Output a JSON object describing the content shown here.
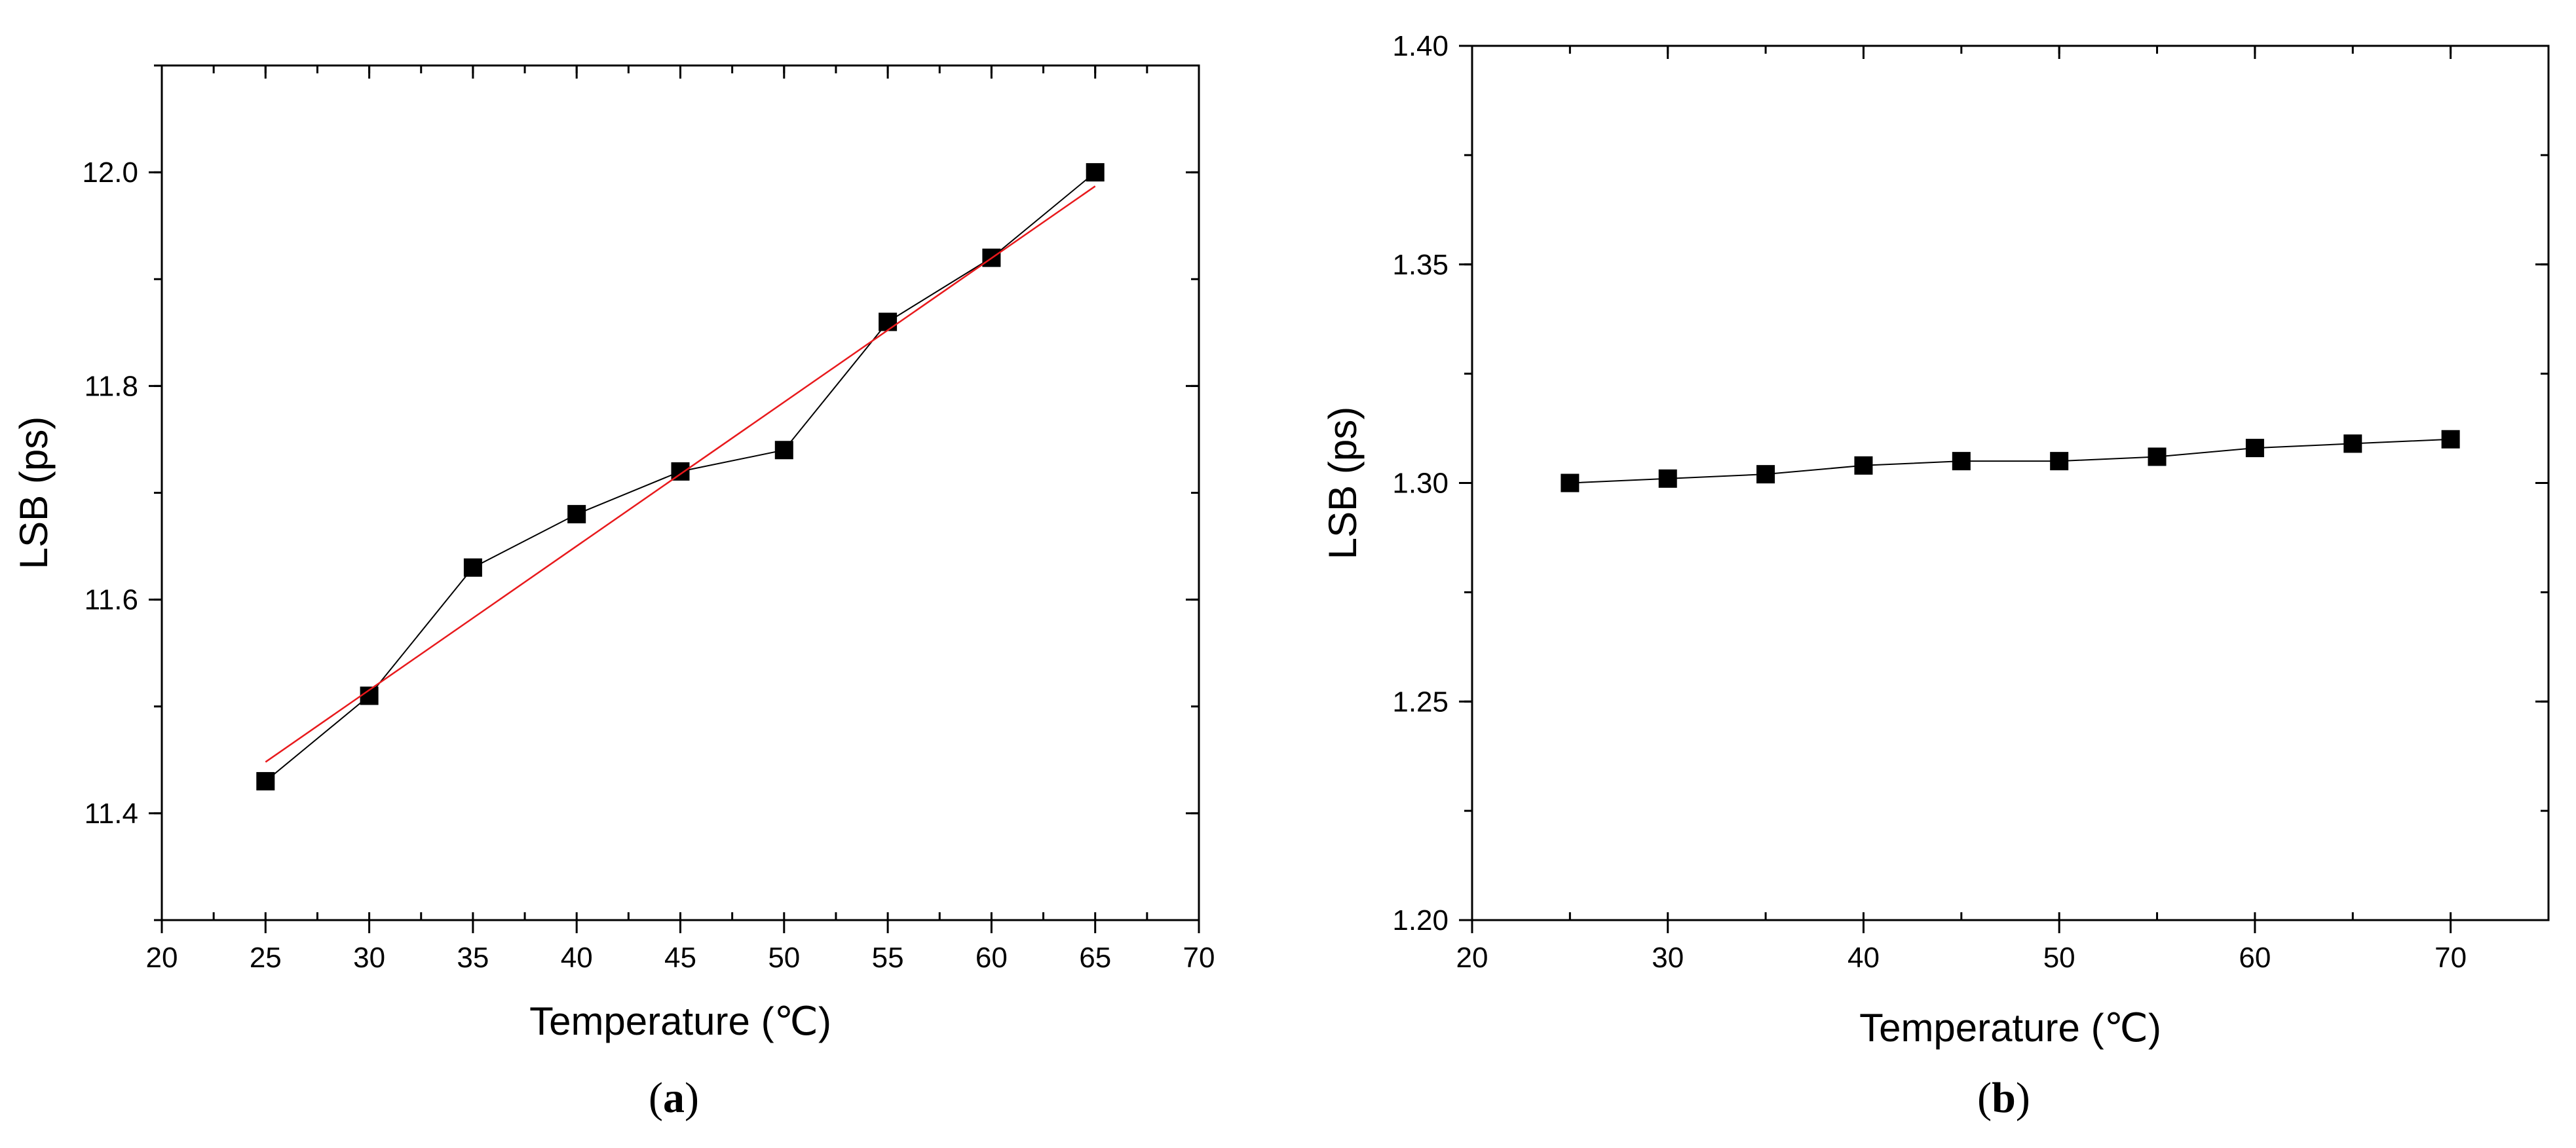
{
  "chart_data": [
    {
      "type": "line",
      "panel_label": "a",
      "xlabel": "Temperature (℃)",
      "ylabel": "LSB (ps)",
      "xlim": [
        20,
        70
      ],
      "ylim": [
        11.3,
        12.1
      ],
      "x_ticks": [
        20,
        25,
        30,
        35,
        40,
        45,
        50,
        55,
        60,
        65,
        70
      ],
      "x_tick_labels": [
        "20",
        "25",
        "30",
        "35",
        "40",
        "45",
        "50",
        "55",
        "60",
        "65",
        "70"
      ],
      "y_ticks": [
        11.4,
        11.6,
        11.8,
        12.0
      ],
      "y_tick_labels": [
        "11.4",
        "11.6",
        "11.8",
        "12.0"
      ],
      "grid": false,
      "legend": "none",
      "series": [
        {
          "marker": "square",
          "color": "#000000",
          "x": [
            25,
            30,
            35,
            40,
            45,
            50,
            55,
            60,
            65
          ],
          "values": [
            11.43,
            11.51,
            11.63,
            11.68,
            11.72,
            11.74,
            11.86,
            11.92,
            12.0
          ]
        },
        {
          "kind": "linear-fit",
          "color": "#e8191c",
          "x": [
            25,
            65
          ],
          "values": [
            11.448,
            11.987
          ]
        }
      ]
    },
    {
      "type": "line",
      "panel_label": "b",
      "xlabel": "Temperature (℃)",
      "ylabel": "LSB (ps)",
      "xlim": [
        20,
        75
      ],
      "ylim": [
        1.2,
        1.4
      ],
      "x_ticks": [
        20,
        30,
        40,
        50,
        60,
        70
      ],
      "x_tick_labels": [
        "20",
        "30",
        "40",
        "50",
        "60",
        "70"
      ],
      "y_ticks": [
        1.2,
        1.25,
        1.3,
        1.35,
        1.4
      ],
      "y_tick_labels": [
        "1.20",
        "1.25",
        "1.30",
        "1.35",
        "1.40"
      ],
      "grid": false,
      "legend": "none",
      "series": [
        {
          "marker": "square",
          "color": "#000000",
          "x": [
            25,
            30,
            35,
            40,
            45,
            50,
            55,
            60,
            65,
            70
          ],
          "values": [
            1.3,
            1.301,
            1.302,
            1.304,
            1.305,
            1.305,
            1.306,
            1.308,
            1.309,
            1.31
          ]
        }
      ]
    }
  ]
}
